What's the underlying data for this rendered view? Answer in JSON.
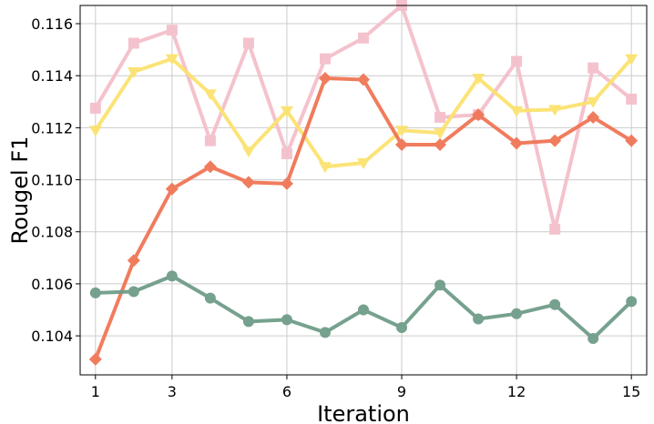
{
  "chart_data": {
    "type": "line",
    "title": "",
    "xlabel": "Iteration",
    "ylabel": "Rougel F1",
    "xlim": [
      0.6,
      15.4
    ],
    "ylim": [
      0.1025,
      0.1167
    ],
    "grid": true,
    "legend": "none",
    "x": [
      1,
      2,
      3,
      4,
      5,
      6,
      7,
      8,
      9,
      10,
      11,
      12,
      13,
      14,
      15
    ],
    "x_ticks": [
      1,
      3,
      6,
      9,
      12,
      15
    ],
    "y_ticks": [
      0.104,
      0.106,
      0.108,
      0.11,
      0.112,
      0.114,
      0.116
    ],
    "series": [
      {
        "color": "#f4bfcb",
        "marker": "square",
        "values": [
          0.11275,
          0.11525,
          0.11575,
          0.1115,
          0.11525,
          0.111,
          0.11465,
          0.11545,
          0.1167,
          0.1124,
          0.1125,
          0.11455,
          0.1081,
          0.1143,
          0.1131
        ]
      },
      {
        "color": "#fbe26f",
        "marker": "triangle-down",
        "values": [
          0.1119,
          0.11415,
          0.11465,
          0.1133,
          0.1111,
          0.11265,
          0.1105,
          0.11065,
          0.1119,
          0.1118,
          0.1139,
          0.11265,
          0.1127,
          0.113,
          0.11465
        ]
      },
      {
        "color": "#f07656",
        "marker": "diamond",
        "values": [
          0.1031,
          0.1069,
          0.10965,
          0.1105,
          0.1099,
          0.10985,
          0.1139,
          0.11385,
          0.11135,
          0.11135,
          0.1125,
          0.1114,
          0.1115,
          0.1124,
          0.1115
        ]
      },
      {
        "color": "#6f9c88",
        "marker": "circle",
        "values": [
          0.10565,
          0.1057,
          0.1063,
          0.10545,
          0.10455,
          0.10462,
          0.10413,
          0.105,
          0.10432,
          0.10595,
          0.10465,
          0.10485,
          0.1052,
          0.1039,
          0.10532
        ]
      }
    ]
  }
}
